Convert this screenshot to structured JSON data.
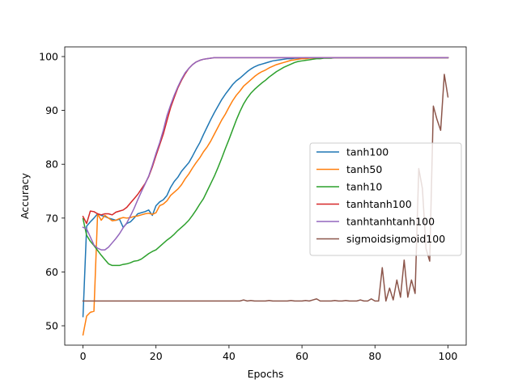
{
  "chart_data": {
    "type": "line",
    "title": "",
    "xlabel": "Epochs",
    "ylabel": "Accuracy",
    "xlim": [
      -5,
      105
    ],
    "ylim": [
      46.4,
      101.8
    ],
    "xticks": [
      0,
      20,
      40,
      60,
      80,
      100
    ],
    "yticks": [
      50,
      60,
      70,
      80,
      90,
      100
    ],
    "grid": false,
    "legend_position": "center-right",
    "x": [
      0,
      1,
      2,
      3,
      4,
      5,
      6,
      7,
      8,
      9,
      10,
      11,
      12,
      13,
      14,
      15,
      16,
      17,
      18,
      19,
      20,
      21,
      22,
      23,
      24,
      25,
      26,
      27,
      28,
      29,
      30,
      31,
      32,
      33,
      34,
      35,
      36,
      37,
      38,
      39,
      40,
      41,
      42,
      43,
      44,
      45,
      46,
      47,
      48,
      49,
      50,
      51,
      52,
      53,
      54,
      55,
      56,
      57,
      58,
      59,
      60,
      61,
      62,
      63,
      64,
      65,
      66,
      67,
      68,
      69,
      70,
      71,
      72,
      73,
      74,
      75,
      76,
      77,
      78,
      79,
      80,
      81,
      82,
      83,
      84,
      85,
      86,
      87,
      88,
      89,
      90,
      91,
      92,
      93,
      94,
      95,
      96,
      97,
      98,
      99,
      100
    ],
    "series": [
      {
        "name": "tanh100",
        "color": "#1f77b4",
        "values": [
          51.7,
          68.5,
          69.3,
          70.0,
          70.8,
          70.5,
          70.3,
          70.0,
          69.8,
          69.6,
          69.8,
          68.3,
          69.0,
          69.3,
          70.0,
          70.8,
          71.0,
          71.2,
          71.5,
          70.5,
          72.3,
          73.0,
          73.4,
          74.2,
          75.7,
          76.8,
          77.6,
          78.7,
          79.5,
          80.3,
          81.5,
          82.8,
          84.0,
          85.5,
          86.9,
          88.3,
          89.6,
          90.8,
          92.0,
          93.0,
          93.9,
          94.8,
          95.5,
          96.0,
          96.6,
          97.2,
          97.7,
          98.1,
          98.4,
          98.6,
          98.8,
          99.0,
          99.2,
          99.3,
          99.4,
          99.5,
          99.6,
          99.6,
          99.7,
          99.7,
          99.7,
          99.8,
          99.8,
          99.8,
          99.8,
          99.8,
          99.8,
          99.8,
          99.8,
          99.8,
          99.8,
          99.8,
          99.8,
          99.8,
          99.8,
          99.8,
          99.8,
          99.8,
          99.8,
          99.8,
          99.8,
          99.8,
          99.8,
          99.8,
          99.8,
          99.8,
          99.8,
          99.8,
          99.8,
          99.8,
          99.8,
          99.8,
          99.8,
          99.8,
          99.8,
          99.8,
          99.8,
          99.8,
          99.8,
          99.8,
          99.8
        ]
      },
      {
        "name": "tanh50",
        "color": "#ff7f0e",
        "values": [
          48.3,
          51.8,
          52.5,
          52.7,
          70.8,
          69.6,
          70.5,
          70.0,
          69.5,
          69.6,
          69.9,
          70.1,
          70.0,
          70.1,
          70.3,
          70.4,
          70.6,
          70.8,
          70.9,
          70.7,
          71.0,
          72.3,
          72.6,
          73.2,
          74.2,
          74.8,
          75.4,
          76.2,
          77.3,
          78.2,
          79.3,
          80.3,
          81.2,
          82.3,
          83.2,
          84.3,
          85.6,
          86.9,
          88.2,
          89.3,
          90.6,
          91.8,
          92.8,
          93.6,
          94.5,
          95.1,
          95.7,
          96.3,
          96.8,
          97.2,
          97.5,
          97.9,
          98.2,
          98.5,
          98.7,
          98.9,
          99.1,
          99.3,
          99.4,
          99.5,
          99.6,
          99.6,
          99.7,
          99.7,
          99.7,
          99.8,
          99.8,
          99.8,
          99.8,
          99.8,
          99.8,
          99.8,
          99.8,
          99.8,
          99.8,
          99.8,
          99.8,
          99.8,
          99.8,
          99.8,
          99.8,
          99.8,
          99.8,
          99.8,
          99.8,
          99.8,
          99.8,
          99.8,
          99.8,
          99.8,
          99.8,
          99.8,
          99.8,
          99.8,
          99.8,
          99.8,
          99.8,
          99.8,
          99.8,
          99.8,
          99.8
        ]
      },
      {
        "name": "tanh10",
        "color": "#2ca02c",
        "values": [
          69.9,
          66.8,
          65.7,
          64.9,
          64.0,
          63.1,
          62.3,
          61.5,
          61.2,
          61.2,
          61.2,
          61.4,
          61.5,
          61.7,
          62.0,
          62.1,
          62.4,
          62.9,
          63.4,
          63.8,
          64.1,
          64.7,
          65.3,
          65.9,
          66.4,
          67.0,
          67.7,
          68.3,
          68.9,
          69.6,
          70.5,
          71.5,
          72.6,
          73.6,
          75.0,
          76.4,
          77.8,
          79.4,
          81.1,
          82.9,
          84.6,
          86.4,
          88.2,
          89.8,
          91.2,
          92.3,
          93.2,
          93.9,
          94.5,
          95.1,
          95.6,
          96.2,
          96.7,
          97.2,
          97.6,
          98.0,
          98.3,
          98.6,
          98.9,
          99.1,
          99.2,
          99.3,
          99.4,
          99.5,
          99.6,
          99.6,
          99.7,
          99.7,
          99.7,
          99.8,
          99.8,
          99.8,
          99.8,
          99.8,
          99.8,
          99.8,
          99.8,
          99.8,
          99.8,
          99.8,
          99.8,
          99.8,
          99.8,
          99.8,
          99.8,
          99.8,
          99.8,
          99.8,
          99.8,
          99.8,
          99.8,
          99.8,
          99.8,
          99.8,
          99.8,
          99.8,
          99.8,
          99.8,
          99.8,
          99.8,
          99.8
        ]
      },
      {
        "name": "tanhtanh100",
        "color": "#d62728",
        "values": [
          70.3,
          69.0,
          71.3,
          71.2,
          70.8,
          70.6,
          70.8,
          70.8,
          70.6,
          71.1,
          71.3,
          71.5,
          72.0,
          72.8,
          73.6,
          74.4,
          75.4,
          76.4,
          77.7,
          79.5,
          81.6,
          83.6,
          85.6,
          88.1,
          90.5,
          92.4,
          94.2,
          95.6,
          96.8,
          97.8,
          98.5,
          99.0,
          99.3,
          99.5,
          99.6,
          99.7,
          99.8,
          99.8,
          99.8,
          99.8,
          99.8,
          99.8,
          99.8,
          99.8,
          99.8,
          99.8,
          99.8,
          99.8,
          99.8,
          99.8,
          99.8,
          99.8,
          99.8,
          99.8,
          99.8,
          99.8,
          99.8,
          99.8,
          99.8,
          99.8,
          99.8,
          99.8,
          99.8,
          99.8,
          99.8,
          99.8,
          99.8,
          99.8,
          99.8,
          99.8,
          99.8,
          99.8,
          99.8,
          99.8,
          99.8,
          99.8,
          99.8,
          99.8,
          99.8,
          99.8,
          99.8,
          99.8,
          99.8,
          99.8,
          99.8,
          99.8,
          99.8,
          99.8,
          99.8,
          99.8,
          99.8,
          99.8,
          99.8,
          99.8,
          99.8,
          99.8,
          99.8,
          99.8,
          99.8,
          99.8,
          99.8
        ]
      },
      {
        "name": "tanhtanhtanh100",
        "color": "#9467bd",
        "values": [
          68.3,
          68.0,
          66.5,
          65.0,
          64.4,
          64.1,
          64.1,
          64.6,
          65.4,
          66.2,
          67.1,
          68.2,
          69.1,
          70.4,
          71.8,
          73.4,
          74.9,
          76.3,
          77.8,
          79.8,
          82.0,
          84.0,
          86.3,
          89.0,
          91.0,
          92.8,
          94.4,
          95.8,
          97.0,
          97.8,
          98.5,
          99.0,
          99.3,
          99.5,
          99.6,
          99.7,
          99.8,
          99.8,
          99.8,
          99.8,
          99.8,
          99.8,
          99.8,
          99.8,
          99.8,
          99.8,
          99.8,
          99.8,
          99.8,
          99.8,
          99.8,
          99.8,
          99.8,
          99.8,
          99.8,
          99.8,
          99.8,
          99.8,
          99.8,
          99.8,
          99.8,
          99.8,
          99.8,
          99.8,
          99.8,
          99.8,
          99.8,
          99.8,
          99.8,
          99.8,
          99.8,
          99.8,
          99.8,
          99.8,
          99.8,
          99.8,
          99.8,
          99.8,
          99.8,
          99.8,
          99.8,
          99.8,
          99.8,
          99.8,
          99.8,
          99.8,
          99.8,
          99.8,
          99.8,
          99.8,
          99.8,
          99.8,
          99.8,
          99.8,
          99.8,
          99.8,
          99.8,
          99.8,
          99.8,
          99.8,
          99.8
        ]
      },
      {
        "name": "sigmoidsigmoid100",
        "color": "#8c564b",
        "values": [
          54.6,
          54.6,
          54.6,
          54.6,
          54.6,
          54.6,
          54.6,
          54.6,
          54.6,
          54.6,
          54.6,
          54.6,
          54.6,
          54.6,
          54.6,
          54.6,
          54.6,
          54.6,
          54.6,
          54.6,
          54.6,
          54.6,
          54.6,
          54.6,
          54.6,
          54.6,
          54.6,
          54.6,
          54.6,
          54.6,
          54.6,
          54.6,
          54.6,
          54.6,
          54.6,
          54.6,
          54.6,
          54.6,
          54.6,
          54.6,
          54.6,
          54.6,
          54.6,
          54.6,
          54.8,
          54.6,
          54.7,
          54.6,
          54.6,
          54.6,
          54.6,
          54.7,
          54.6,
          54.6,
          54.6,
          54.6,
          54.6,
          54.7,
          54.6,
          54.6,
          54.6,
          54.7,
          54.6,
          54.8,
          55.0,
          54.6,
          54.6,
          54.6,
          54.6,
          54.7,
          54.6,
          54.6,
          54.7,
          54.6,
          54.6,
          54.6,
          54.8,
          54.6,
          54.6,
          55.0,
          54.6,
          54.6,
          60.8,
          54.6,
          57.0,
          54.8,
          58.5,
          55.3,
          62.2,
          55.3,
          58.5,
          56.0,
          79.2,
          75.5,
          64.3,
          62.0,
          90.8,
          88.3,
          86.3,
          96.7,
          92.5
        ]
      }
    ]
  }
}
